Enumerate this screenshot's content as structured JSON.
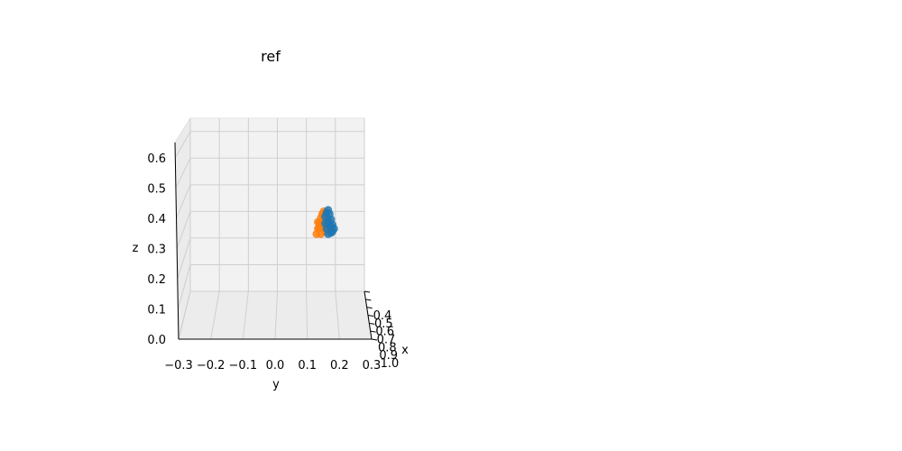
{
  "chart_data": {
    "type": "scatter",
    "title": "ref",
    "xlabel": "x",
    "ylabel": "y",
    "zlabel": "z",
    "x_ticks": [
      "0.4",
      "0.5",
      "0.6",
      "0.7",
      "0.8",
      "0.9",
      "1.0"
    ],
    "y_ticks": [
      "−0.3",
      "−0.2",
      "−0.1",
      "0.0",
      "0.1",
      "0.2",
      "0.3"
    ],
    "z_ticks": [
      "0.0",
      "0.1",
      "0.2",
      "0.3",
      "0.4",
      "0.5",
      "0.6"
    ],
    "ylim": [
      -0.3,
      0.3
    ],
    "zlim": [
      0.0,
      0.65
    ],
    "grid": true,
    "series": [
      {
        "color": "#ff7f0e",
        "points": [
          {
            "y": 0.135,
            "z": 0.215
          },
          {
            "y": 0.14,
            "z": 0.235
          },
          {
            "y": 0.145,
            "z": 0.255
          },
          {
            "y": 0.15,
            "z": 0.275
          },
          {
            "y": 0.155,
            "z": 0.29
          },
          {
            "y": 0.16,
            "z": 0.3
          },
          {
            "y": 0.165,
            "z": 0.29
          },
          {
            "y": 0.17,
            "z": 0.27
          },
          {
            "y": 0.17,
            "z": 0.245
          },
          {
            "y": 0.165,
            "z": 0.225
          },
          {
            "y": 0.15,
            "z": 0.215
          },
          {
            "y": 0.145,
            "z": 0.24
          },
          {
            "y": 0.155,
            "z": 0.26
          },
          {
            "y": 0.16,
            "z": 0.235
          },
          {
            "y": 0.14,
            "z": 0.26
          }
        ]
      },
      {
        "color": "#1f77b4",
        "points": [
          {
            "y": 0.165,
            "z": 0.28
          },
          {
            "y": 0.17,
            "z": 0.295
          },
          {
            "y": 0.175,
            "z": 0.305
          },
          {
            "y": 0.18,
            "z": 0.29
          },
          {
            "y": 0.185,
            "z": 0.27
          },
          {
            "y": 0.19,
            "z": 0.25
          },
          {
            "y": 0.195,
            "z": 0.235
          },
          {
            "y": 0.185,
            "z": 0.22
          },
          {
            "y": 0.175,
            "z": 0.215
          },
          {
            "y": 0.17,
            "z": 0.235
          },
          {
            "y": 0.18,
            "z": 0.25
          },
          {
            "y": 0.175,
            "z": 0.265
          },
          {
            "y": 0.19,
            "z": 0.225
          },
          {
            "y": 0.165,
            "z": 0.255
          },
          {
            "y": 0.185,
            "z": 0.24
          }
        ]
      }
    ]
  }
}
